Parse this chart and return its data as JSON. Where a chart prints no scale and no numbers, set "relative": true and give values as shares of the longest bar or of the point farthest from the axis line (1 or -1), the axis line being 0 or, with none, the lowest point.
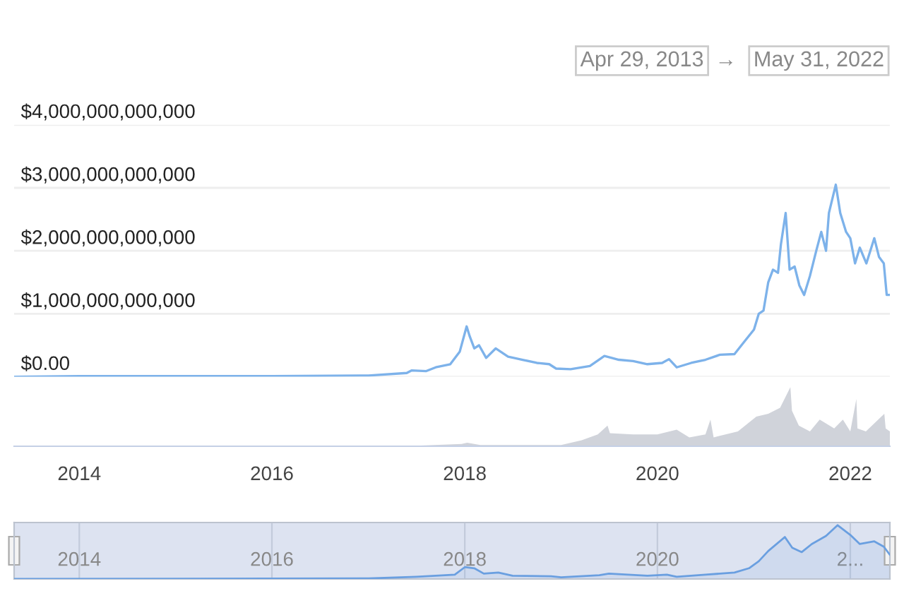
{
  "chart_data": [
    {
      "type": "line",
      "annotations": [
        "Apr 29, 2013",
        "→",
        "May 31, 2022"
      ],
      "xlim": [
        "2013-04-29",
        "2022-05-31"
      ],
      "ylim": [
        0,
        4000000000000
      ],
      "yticks": [
        {
          "value": 0,
          "label": "$0.00"
        },
        {
          "value": 1000000000000,
          "label": "$1,000,000,000,000"
        },
        {
          "value": 2000000000000,
          "label": "$2,000,000,000,000"
        },
        {
          "value": 3000000000000,
          "label": "$3,000,000,000,000"
        },
        {
          "value": 4000000000000,
          "label": "$4,000,000,000,000"
        }
      ],
      "tick_labels": "y",
      "grid": "y",
      "series": [
        {
          "color": "#7db2ea",
          "x": [
            "2013-04-29",
            "2014-01-01",
            "2016-01-01",
            "2017-01-01",
            "2017-05-26",
            "2017-06-13",
            "2017-08-08",
            "2017-09-13",
            "2017-11-07",
            "2017-12-13",
            "2018-01-08",
            "2018-01-19",
            "2018-02-06",
            "2018-02-24",
            "2018-03-23",
            "2018-04-28",
            "2018-06-14",
            "2018-08-08",
            "2018-10-01",
            "2018-11-17",
            "2018-12-13",
            "2019-02-06",
            "2019-04-20",
            "2019-06-14",
            "2019-08-08",
            "2019-10-01",
            "2019-11-24",
            "2020-01-19",
            "2020-02-14",
            "2020-03-14",
            "2020-05-08",
            "2020-07-01",
            "2020-08-25",
            "2020-10-19",
            "2020-11-24",
            "2021-01-01",
            "2021-01-19",
            "2021-02-06",
            "2021-02-24",
            "2021-03-14",
            "2021-04-02",
            "2021-04-13",
            "2021-05-01",
            "2021-05-16",
            "2021-06-04",
            "2021-06-22",
            "2021-07-10",
            "2021-08-01",
            "2021-08-25",
            "2021-09-13",
            "2021-10-01",
            "2021-10-12",
            "2021-11-07",
            "2021-11-24",
            "2021-12-16",
            "2022-01-01",
            "2022-01-19",
            "2022-02-06",
            "2022-03-03",
            "2022-04-02",
            "2022-04-20",
            "2022-05-08",
            "2022-05-19",
            "2022-05-31"
          ],
          "values": [
            0,
            10000000000,
            10000000000,
            20000000000,
            60000000000,
            100000000000,
            90000000000,
            150000000000,
            200000000000,
            400000000000,
            800000000000,
            650000000000,
            450000000000,
            500000000000,
            300000000000,
            450000000000,
            320000000000,
            270000000000,
            220000000000,
            200000000000,
            130000000000,
            120000000000,
            170000000000,
            330000000000,
            270000000000,
            250000000000,
            200000000000,
            220000000000,
            280000000000,
            150000000000,
            220000000000,
            270000000000,
            350000000000,
            360000000000,
            550000000000,
            750000000000,
            1000000000000,
            1050000000000,
            1500000000000,
            1700000000000,
            1650000000000,
            2100000000000,
            2600000000000,
            1700000000000,
            1750000000000,
            1450000000000,
            1300000000000,
            1600000000000,
            2000000000000,
            2300000000000,
            2000000000000,
            2600000000000,
            3050000000000,
            2600000000000,
            2300000000000,
            2200000000000,
            1800000000000,
            2050000000000,
            1800000000000,
            2200000000000,
            1900000000000,
            1800000000000,
            1300000000000,
            1300000000000
          ]
        }
      ]
    },
    {
      "type": "area",
      "relative": true,
      "xlim": [
        "2013-04-29",
        "2022-05-31"
      ],
      "xticks": [
        {
          "value": "2014-01-01",
          "label": "2014"
        },
        {
          "value": "2016-01-01",
          "label": "2016"
        },
        {
          "value": "2018-01-01",
          "label": "2018"
        },
        {
          "value": "2020-01-01",
          "label": "2020"
        },
        {
          "value": "2022-01-01",
          "label": "2022"
        }
      ],
      "tick_labels": "x",
      "series": [
        {
          "color": "#d0d3da",
          "x": [
            "2013-04-29",
            "2017-07-01",
            "2017-12-20",
            "2018-01-10",
            "2018-03-01",
            "2019-01-01",
            "2019-03-20",
            "2019-05-20",
            "2019-06-26",
            "2019-07-05",
            "2019-10-01",
            "2020-01-01",
            "2020-03-14",
            "2020-05-01",
            "2020-07-01",
            "2020-07-20",
            "2020-08-01",
            "2020-11-01",
            "2021-01-10",
            "2021-02-24",
            "2021-04-10",
            "2021-05-19",
            "2021-05-25",
            "2021-06-20",
            "2021-08-01",
            "2021-09-07",
            "2021-11-01",
            "2021-12-04",
            "2022-01-01",
            "2022-01-24",
            "2022-01-28",
            "2022-03-01",
            "2022-05-10",
            "2022-05-15",
            "2022-05-31"
          ],
          "values": [
            0,
            0.01,
            0.04,
            0.06,
            0.02,
            0.02,
            0.1,
            0.2,
            0.35,
            0.22,
            0.2,
            0.2,
            0.28,
            0.15,
            0.2,
            0.45,
            0.15,
            0.25,
            0.5,
            0.55,
            0.65,
            1.0,
            0.6,
            0.35,
            0.25,
            0.45,
            0.3,
            0.45,
            0.25,
            0.8,
            0.3,
            0.25,
            0.55,
            0.3,
            0.25
          ]
        }
      ]
    },
    {
      "type": "line",
      "relative": true,
      "xlim": [
        "2013-04-29",
        "2022-05-31"
      ],
      "xticks": [
        {
          "value": "2014-01-01",
          "label": "2014"
        },
        {
          "value": "2016-01-01",
          "label": "2016"
        },
        {
          "value": "2018-01-01",
          "label": "2018"
        },
        {
          "value": "2020-01-01",
          "label": "2020"
        },
        {
          "value": "2022-01-01",
          "label": "2..."
        }
      ],
      "tick_labels": "x",
      "grid": "x",
      "series": [
        {
          "color": "#6a9fe0",
          "x": [
            "2013-04-29",
            "2017-01-01",
            "2017-07-01",
            "2017-11-24",
            "2018-01-01",
            "2018-02-06",
            "2018-03-14",
            "2018-05-08",
            "2018-07-01",
            "2018-11-24",
            "2019-01-01",
            "2019-05-26",
            "2019-07-01",
            "2019-11-24",
            "2020-02-06",
            "2020-03-14",
            "2020-07-01",
            "2020-10-19",
            "2020-12-13",
            "2021-01-19",
            "2021-02-24",
            "2021-04-28",
            "2021-05-26",
            "2021-07-01",
            "2021-08-08",
            "2021-10-01",
            "2021-11-14",
            "2022-01-01",
            "2022-02-06",
            "2022-04-02",
            "2022-05-08",
            "2022-05-31"
          ],
          "values": [
            0,
            0.01,
            0.04,
            0.08,
            0.22,
            0.2,
            0.1,
            0.12,
            0.06,
            0.05,
            0.03,
            0.07,
            0.1,
            0.06,
            0.08,
            0.04,
            0.08,
            0.12,
            0.2,
            0.33,
            0.52,
            0.78,
            0.58,
            0.5,
            0.65,
            0.8,
            1.0,
            0.82,
            0.65,
            0.7,
            0.6,
            0.45
          ]
        }
      ]
    }
  ]
}
